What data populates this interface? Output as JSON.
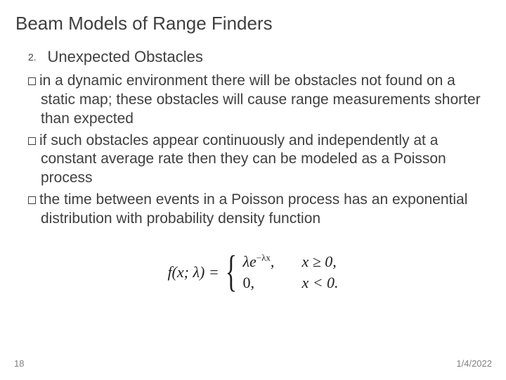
{
  "slide": {
    "title": "Beam Models of Range Finders",
    "section_number": "2.",
    "section_heading": "Unexpected Obstacles",
    "bullets": [
      "in a dynamic environment there will be obstacles not found on a static map; these obstacles will cause range measurements shorter than expected",
      "if such obstacles appear continuously and independently at a constant average rate then they can be modeled as a Poisson process",
      "the time between events in a Poisson process has an exponential distribution with probability density function"
    ],
    "formula": {
      "lhs": "f(x; λ) =",
      "case1_expr": "λe",
      "case1_exp": "−λx",
      "case1_comma": ",",
      "case1_cond": "x ≥ 0,",
      "case2_expr": "0,",
      "case2_cond": "x < 0."
    },
    "footer": {
      "page": "18",
      "date": "1/4/2022"
    }
  },
  "style": {
    "background_color": "#ffffff",
    "title_color": "#3f3f3f",
    "title_fontsize": 26,
    "body_color": "#3f3f3f",
    "body_fontsize": 21,
    "footer_color": "#808080",
    "footer_fontsize": 13,
    "bullet_box_border": "#3f3f3f",
    "formula_color": "#202020",
    "formula_fontsize": 22
  }
}
